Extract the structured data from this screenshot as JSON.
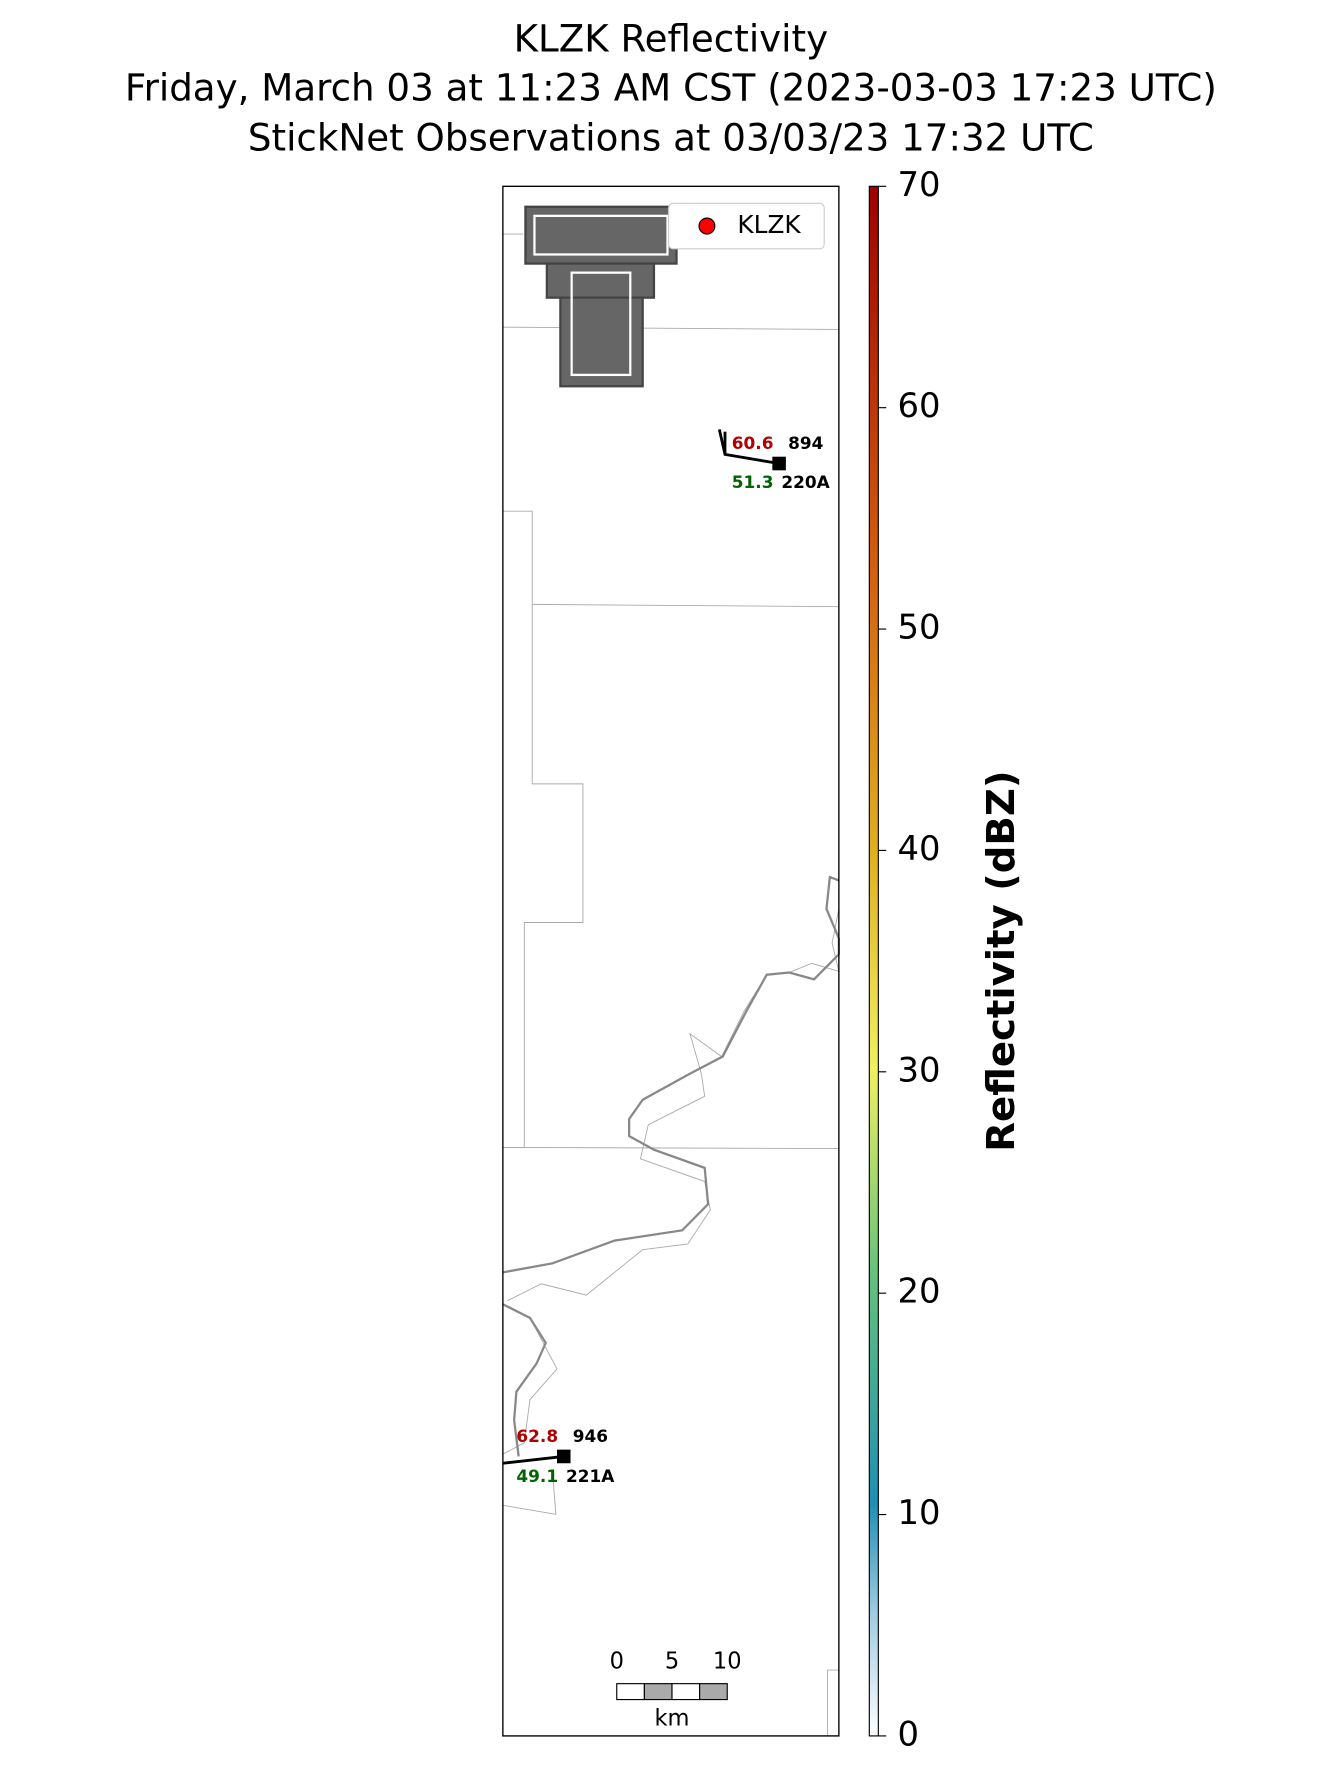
{
  "header": {
    "title": "KLZK Reflectivity",
    "subtitle": "Friday, March 03 at 11:23 AM CST (2023-03-03 17:23 UTC)",
    "observations": "StickNet Observations at 03/03/23 17:32 UTC"
  },
  "legend": {
    "label": "KLZK",
    "color": "#ff0000"
  },
  "stations": [
    {
      "id": "220A",
      "temperature": 60.6,
      "dewpoint": 51.3,
      "pressure": 894
    },
    {
      "id": "221A",
      "temperature": 62.8,
      "dewpoint": 49.1,
      "pressure": 946
    }
  ],
  "colorbar": {
    "label": "Reflectivity (dBZ)",
    "lim": [
      0,
      70
    ],
    "ticks": [
      0,
      10,
      20,
      30,
      40,
      50,
      60,
      70
    ]
  },
  "scale_bar": {
    "ticks": [
      0,
      5,
      10
    ],
    "unit": "km"
  }
}
